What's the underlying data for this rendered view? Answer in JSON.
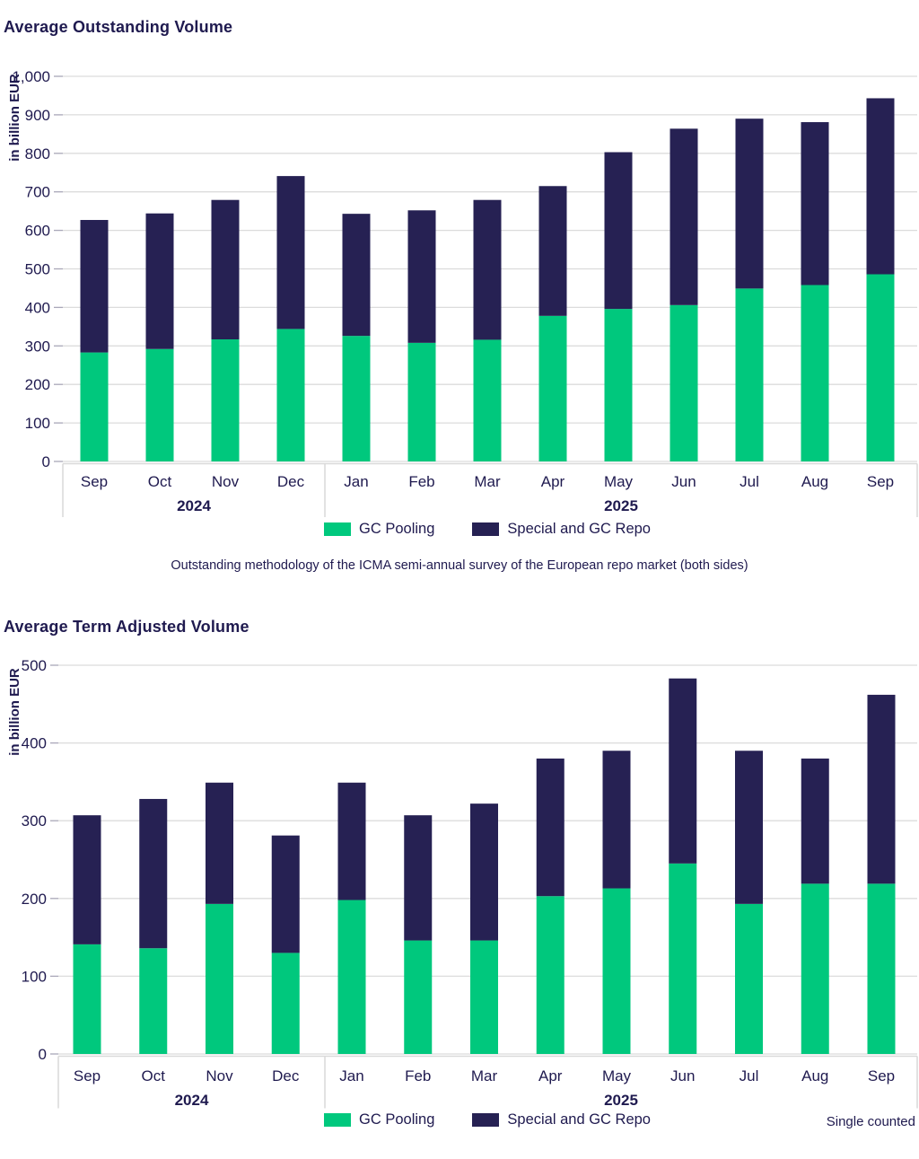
{
  "colors": {
    "accent_green": "#00C87D",
    "accent_navy": "#262153",
    "text_navy": "#1F1A4F",
    "gridline": "#DCDCDC",
    "tick": "#A9A7B8",
    "axis_band_border": "#D9D9D9"
  },
  "chart_data": [
    {
      "type": "bar",
      "stacked": true,
      "title": "Average Outstanding Volume",
      "ylabel": "in billion EUR",
      "unit": "billion EUR",
      "ylim": [
        0,
        1000
      ],
      "ytick_interval": 100,
      "grid": true,
      "legend_position": "bottom",
      "categories": [
        "Sep",
        "Oct",
        "Nov",
        "Dec",
        "Jan",
        "Feb",
        "Mar",
        "Apr",
        "May",
        "Jun",
        "Jul",
        "Aug",
        "Sep"
      ],
      "year_groups": [
        {
          "label": "2024",
          "months": 4
        },
        {
          "label": "2025",
          "months": 9
        }
      ],
      "series": [
        {
          "name": "GC Pooling",
          "color_key": "accent_green",
          "values": [
            283,
            292,
            317,
            344,
            326,
            308,
            316,
            378,
            396,
            406,
            449,
            458,
            486
          ]
        },
        {
          "name": "Special and GC Repo",
          "color_key": "accent_navy",
          "values": [
            344,
            352,
            362,
            397,
            317,
            344,
            363,
            337,
            407,
            458,
            441,
            423,
            457
          ]
        }
      ],
      "totals": [
        627,
        644,
        679,
        741,
        643,
        652,
        679,
        715,
        803,
        864,
        890,
        881,
        943
      ],
      "caption": "Outstanding methodology of the ICMA semi-annual survey of the European repo market (both sides)"
    },
    {
      "type": "bar",
      "stacked": true,
      "title": "Average Term Adjusted Volume",
      "ylabel": "in billion EUR",
      "unit": "billion EUR",
      "ylim": [
        0,
        500
      ],
      "ytick_interval": 100,
      "grid": true,
      "legend_position": "bottom",
      "categories": [
        "Sep",
        "Oct",
        "Nov",
        "Dec",
        "Jan",
        "Feb",
        "Mar",
        "Apr",
        "May",
        "Jun",
        "Jul",
        "Aug",
        "Sep"
      ],
      "year_groups": [
        {
          "label": "2024",
          "months": 4
        },
        {
          "label": "2025",
          "months": 9
        }
      ],
      "series": [
        {
          "name": "GC Pooling",
          "color_key": "accent_green",
          "values": [
            141,
            136,
            193,
            130,
            198,
            146,
            146,
            203,
            213,
            245,
            193,
            219,
            219
          ]
        },
        {
          "name": "Special and GC Repo",
          "color_key": "accent_navy",
          "values": [
            166,
            192,
            156,
            151,
            151,
            161,
            176,
            177,
            177,
            238,
            197,
            161,
            243
          ]
        }
      ],
      "totals": [
        307,
        328,
        349,
        281,
        349,
        307,
        322,
        380,
        390,
        483,
        390,
        380,
        462
      ],
      "note": "Single counted"
    }
  ]
}
